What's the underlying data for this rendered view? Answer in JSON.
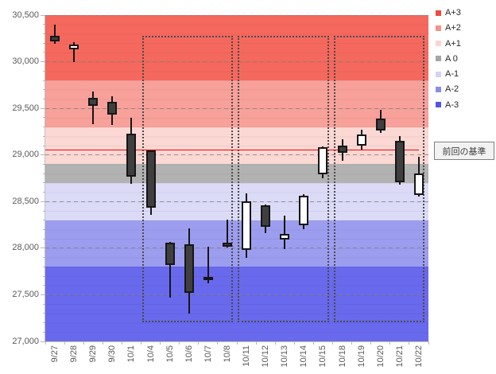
{
  "chart_data": {
    "type": "candlestick",
    "title": "",
    "xlabel": "",
    "ylabel": "",
    "ylim": [
      27000,
      30500
    ],
    "y_major_step": 500,
    "y_minor_step": 100,
    "y_tick_labels": [
      "27,000",
      "27,500",
      "28,000",
      "28,500",
      "29,000",
      "29,500",
      "30,000",
      "30,500"
    ],
    "grid": "horizontal dashed at 500 steps, faint minor lines at 100 steps",
    "legend_position": "right",
    "categories": [
      "9/27",
      "9/28",
      "9/29",
      "9/30",
      "10/1",
      "10/4",
      "10/5",
      "10/6",
      "10/7",
      "10/8",
      "10/11",
      "10/12",
      "10/13",
      "10/14",
      "10/15",
      "10/18",
      "10/19",
      "10/20",
      "10/21",
      "10/22"
    ],
    "candles": [
      {
        "date": "9/27",
        "open": 30280,
        "high": 30400,
        "low": 30190,
        "close": 30220
      },
      {
        "date": "9/28",
        "open": 30130,
        "high": 30210,
        "low": 29995,
        "close": 30185
      },
      {
        "date": "9/29",
        "open": 29610,
        "high": 29680,
        "low": 29330,
        "close": 29530
      },
      {
        "date": "9/30",
        "open": 29570,
        "high": 29630,
        "low": 29325,
        "close": 29435
      },
      {
        "date": "10/1",
        "open": 29230,
        "high": 29395,
        "low": 28690,
        "close": 28770
      },
      {
        "date": "10/4",
        "open": 29045,
        "high": 29050,
        "low": 28360,
        "close": 28435
      },
      {
        "date": "10/5",
        "open": 28060,
        "high": 28065,
        "low": 27470,
        "close": 27820
      },
      {
        "date": "10/6",
        "open": 28040,
        "high": 28215,
        "low": 27300,
        "close": 27520
      },
      {
        "date": "10/7",
        "open": 27690,
        "high": 28020,
        "low": 27620,
        "close": 27665
      },
      {
        "date": "10/8",
        "open": 28055,
        "high": 28310,
        "low": 28010,
        "close": 28020
      },
      {
        "date": "10/11",
        "open": 27980,
        "high": 28590,
        "low": 27900,
        "close": 28500
      },
      {
        "date": "10/12",
        "open": 28460,
        "high": 28465,
        "low": 28165,
        "close": 28230
      },
      {
        "date": "10/13",
        "open": 28090,
        "high": 28350,
        "low": 27990,
        "close": 28150
      },
      {
        "date": "10/14",
        "open": 28250,
        "high": 28580,
        "low": 28200,
        "close": 28560
      },
      {
        "date": "10/15",
        "open": 28790,
        "high": 29090,
        "low": 28750,
        "close": 29085
      },
      {
        "date": "10/18",
        "open": 29100,
        "high": 29170,
        "low": 28940,
        "close": 29020
      },
      {
        "date": "10/19",
        "open": 29100,
        "high": 29270,
        "low": 29060,
        "close": 29220
      },
      {
        "date": "10/20",
        "open": 29390,
        "high": 29480,
        "low": 29235,
        "close": 29260
      },
      {
        "date": "10/21",
        "open": 29150,
        "high": 29205,
        "low": 28685,
        "close": 28705
      },
      {
        "date": "10/22",
        "open": 28570,
        "high": 28980,
        "low": 28550,
        "close": 28800
      }
    ],
    "bands": [
      {
        "label": "A+3",
        "from": 29800,
        "to": 30500,
        "band_color": "#f5685e",
        "legend_color": "#ee4b40"
      },
      {
        "label": "A+2",
        "from": 29300,
        "to": 29800,
        "band_color": "#f8a09a",
        "legend_color": "#f39289"
      },
      {
        "label": "A+1",
        "from": 28900,
        "to": 29300,
        "band_color": "#fcd8d4",
        "legend_color": "#fad5d0"
      },
      {
        "label": "A 0",
        "from": 28700,
        "to": 28900,
        "band_color": "#b2b2b2",
        "legend_color": "#a6a6a6"
      },
      {
        "label": "A-1",
        "from": 28300,
        "to": 28700,
        "band_color": "#dbdbf8",
        "legend_color": "#d3d3f7"
      },
      {
        "label": "A-2",
        "from": 27800,
        "to": 28300,
        "band_color": "#9d9df0",
        "legend_color": "#8b8bec"
      },
      {
        "label": "A-3",
        "from": 27000,
        "to": 27800,
        "band_color": "#6969ed",
        "legend_color": "#5353e7"
      }
    ],
    "baseline": {
      "value": 29055,
      "label": "前回の基準",
      "color": "#fe0000"
    },
    "week_boxes": [
      {
        "from": "10/4",
        "to": "10/8",
        "top": 30280,
        "bottom": 27205
      },
      {
        "from": "10/11",
        "to": "10/15",
        "top": 30280,
        "bottom": 27205
      },
      {
        "from": "10/18",
        "to": "10/22",
        "top": 30280,
        "bottom": 27205
      }
    ],
    "candle_colors": {
      "up_fill": "#ffffff",
      "down_fill": "#3f3f3f",
      "outline": "#161616"
    },
    "axis_text_color": "#595959"
  }
}
